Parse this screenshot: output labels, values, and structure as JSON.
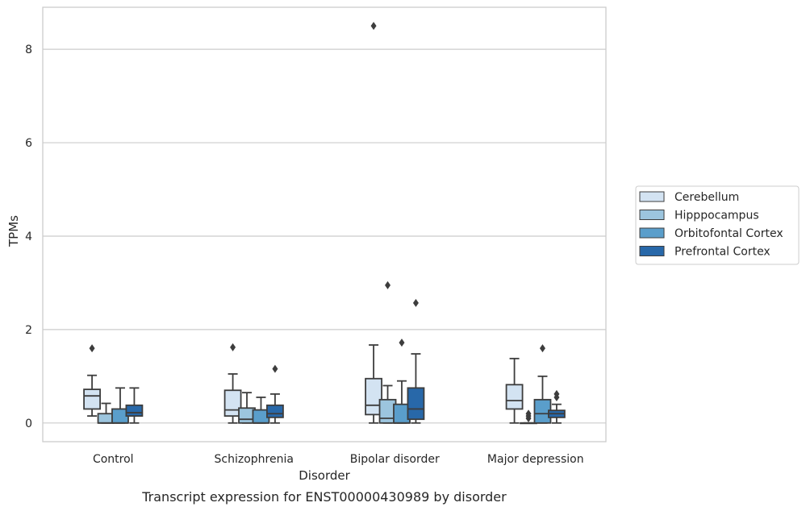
{
  "chart_data": {
    "type": "box",
    "caption": "Transcript expression for ENST00000430989 by disorder",
    "xlabel": "Disorder",
    "ylabel": "TPMs",
    "ylim": [
      -0.4,
      8.9
    ],
    "yticks": [
      0,
      2,
      4,
      6,
      8
    ],
    "categories": [
      "Control",
      "Schizophrenia",
      "Bipolar disorder",
      "Major depression"
    ],
    "grid": "horizontal",
    "legend_position": "right",
    "series": [
      {
        "name": "Cerebellum",
        "color": "#d3e3f2",
        "boxes": [
          {
            "whisker_low": 0.15,
            "q1": 0.3,
            "median": 0.58,
            "q3": 0.72,
            "whisker_high": 1.02,
            "outliers": [
              1.6
            ]
          },
          {
            "whisker_low": 0.0,
            "q1": 0.15,
            "median": 0.28,
            "q3": 0.7,
            "whisker_high": 1.05,
            "outliers": [
              1.62
            ]
          },
          {
            "whisker_low": 0.0,
            "q1": 0.18,
            "median": 0.38,
            "q3": 0.95,
            "whisker_high": 1.67,
            "outliers": [
              8.5
            ]
          },
          {
            "whisker_low": 0.0,
            "q1": 0.3,
            "median": 0.48,
            "q3": 0.82,
            "whisker_high": 1.38,
            "outliers": []
          }
        ]
      },
      {
        "name": "Hipppocampus",
        "color": "#9cc5de",
        "boxes": [
          {
            "whisker_low": 0.0,
            "q1": 0.0,
            "median": 0.0,
            "q3": 0.2,
            "whisker_high": 0.42,
            "outliers": []
          },
          {
            "whisker_low": 0.0,
            "q1": 0.0,
            "median": 0.08,
            "q3": 0.32,
            "whisker_high": 0.65,
            "outliers": []
          },
          {
            "whisker_low": 0.0,
            "q1": 0.0,
            "median": 0.1,
            "q3": 0.5,
            "whisker_high": 0.8,
            "outliers": [
              2.95
            ]
          },
          {
            "whisker_low": 0.0,
            "q1": 0.0,
            "median": 0.0,
            "q3": 0.0,
            "whisker_high": 0.0,
            "outliers": [
              0.1,
              0.15,
              0.2
            ]
          }
        ]
      },
      {
        "name": "Orbitofontal Cortex",
        "color": "#5a9ecb",
        "boxes": [
          {
            "whisker_low": 0.0,
            "q1": 0.0,
            "median": 0.0,
            "q3": 0.3,
            "whisker_high": 0.75,
            "outliers": []
          },
          {
            "whisker_low": 0.0,
            "q1": 0.0,
            "median": 0.0,
            "q3": 0.28,
            "whisker_high": 0.55,
            "outliers": []
          },
          {
            "whisker_low": 0.0,
            "q1": 0.0,
            "median": 0.0,
            "q3": 0.4,
            "whisker_high": 0.9,
            "outliers": [
              1.72
            ]
          },
          {
            "whisker_low": 0.0,
            "q1": 0.0,
            "median": 0.2,
            "q3": 0.5,
            "whisker_high": 1.0,
            "outliers": [
              1.6
            ]
          }
        ]
      },
      {
        "name": "Prefrontal Cortex",
        "color": "#2868a9",
        "boxes": [
          {
            "whisker_low": 0.0,
            "q1": 0.15,
            "median": 0.22,
            "q3": 0.38,
            "whisker_high": 0.75,
            "outliers": []
          },
          {
            "whisker_low": 0.0,
            "q1": 0.12,
            "median": 0.2,
            "q3": 0.38,
            "whisker_high": 0.62,
            "outliers": [
              1.16
            ]
          },
          {
            "whisker_low": 0.0,
            "q1": 0.08,
            "median": 0.3,
            "q3": 0.75,
            "whisker_high": 1.48,
            "outliers": [
              2.57
            ]
          },
          {
            "whisker_low": 0.0,
            "q1": 0.12,
            "median": 0.2,
            "q3": 0.27,
            "whisker_high": 0.4,
            "outliers": [
              0.55,
              0.62
            ]
          }
        ]
      }
    ]
  }
}
